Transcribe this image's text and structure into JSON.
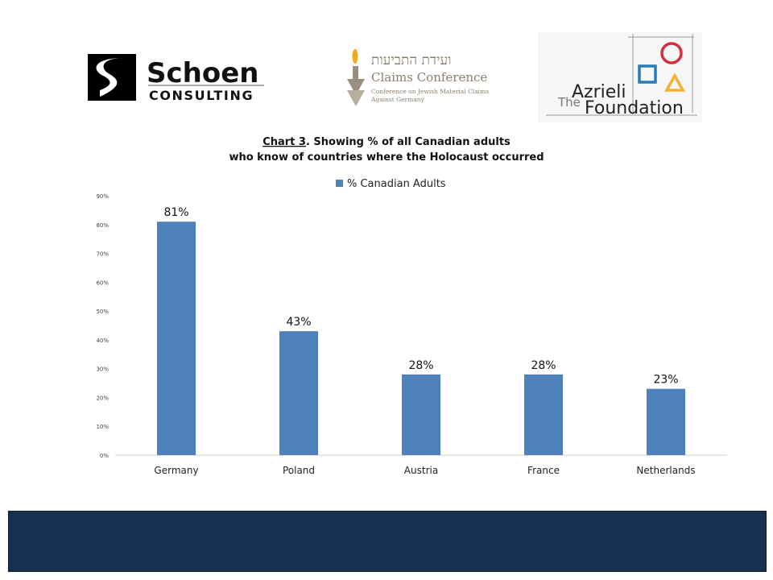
{
  "logos": {
    "schoen": {
      "name": "Schoen",
      "sub": "CONSULTING"
    },
    "claims": {
      "hebrew": "ועידת התביעות",
      "name": "Claims Conference",
      "line1": "Conference on Jewish Material Claims",
      "line2": "Against Germany"
    },
    "azrieli": {
      "the": "The",
      "name1": "Azrieli",
      "name2": "Foundation"
    }
  },
  "colors": {
    "bar": "#4f81bd",
    "footer": "#17304f",
    "azrieli_red": "#d0313d",
    "azrieli_blue": "#2a7ab8",
    "azrieli_yellow": "#f2b230"
  },
  "chart_data": {
    "type": "bar",
    "title_prefix": "Chart 3",
    "title_line1": ". Showing % of all Canadian adults",
    "title_line2": "who know of countries where the Holocaust occurred",
    "legend": "% Canadian Adults",
    "categories": [
      "Germany",
      "Poland",
      "Austria",
      "France",
      "Netherlands"
    ],
    "values": [
      81,
      43,
      28,
      28,
      23
    ],
    "data_labels": [
      "81%",
      "43%",
      "28%",
      "28%",
      "23%"
    ],
    "ylim": [
      0,
      90
    ],
    "yticks": [
      "0%",
      "10%",
      "20%",
      "30%",
      "40%",
      "50%",
      "60%",
      "70%",
      "80%",
      "90%"
    ]
  }
}
